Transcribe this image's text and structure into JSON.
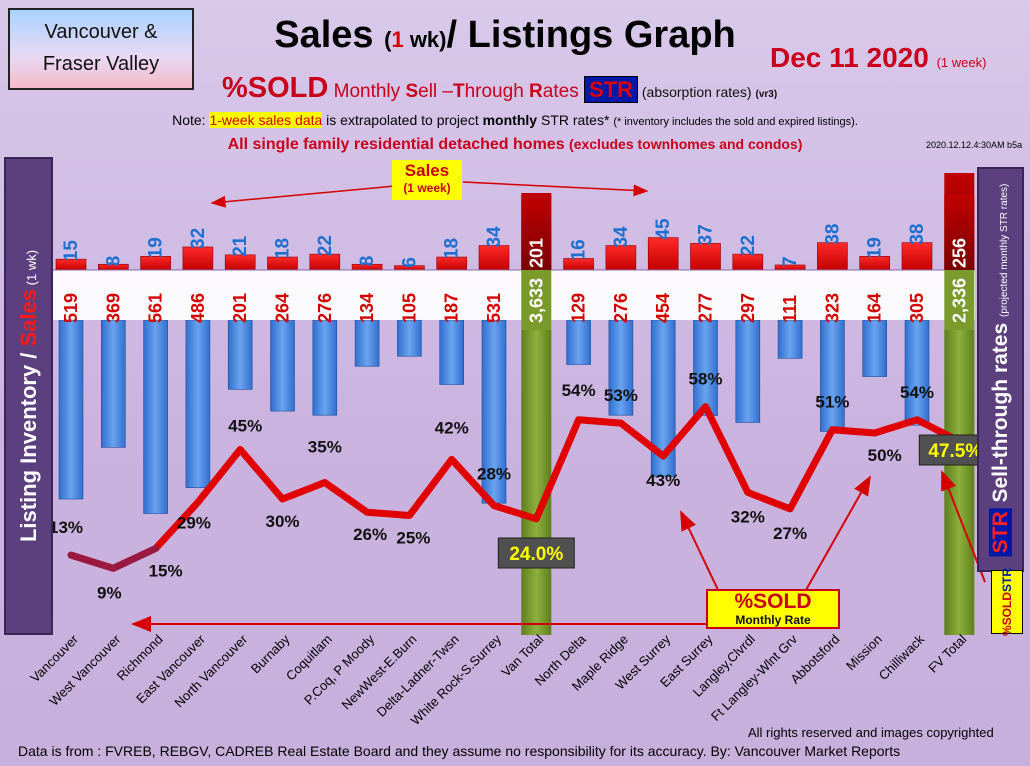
{
  "header": {
    "region_line1": "Vancouver &",
    "region_line2": "Fraser Valley",
    "title_a": "Sales ",
    "title_b": "(",
    "title_c": "1",
    "title_d": " wk)",
    "title_e": "/ Listings Graph",
    "date": "Dec 11  2020",
    "date_suffix": "(1 week)",
    "subtitle_a": "%SOLD",
    "subtitle_b": " Monthly ",
    "subtitle_c": "S",
    "subtitle_d": "ell –",
    "subtitle_e": "T",
    "subtitle_f": "hrough ",
    "subtitle_g": "R",
    "subtitle_h": "ates ",
    "subtitle_str": "STR",
    "subtitle_i": " (absorption rates) ",
    "subtitle_j": "(vr3)",
    "note_a": "Note: ",
    "note_hl": "1-week sales data",
    "note_b": " is extrapolated to project ",
    "note_c": "monthly",
    "note_d": " STR rates* ",
    "note_e": "(* inventory includes the sold and expired listings).",
    "stamp": "2020.12.12.4:30AM b5a",
    "note2_a": "All single family residential detached homes ",
    "note2_b": "(excludes townhomes and condos)"
  },
  "left_axis": {
    "a": "Listing Inventory ",
    "b": "/ ",
    "c": "Sales",
    "d": " (1 wk)"
  },
  "right_axis": {
    "str": "STR",
    "a": " Sell-through rates ",
    "b": "(projected monthly STR rates)"
  },
  "pct_box": {
    "a": "%SOLD",
    "str": "STR"
  },
  "sales_callout": {
    "a": "Sales",
    "b": "(1 week)"
  },
  "sold_box": {
    "a": "%SOLD",
    "b": "Monthly Rate"
  },
  "footer": {
    "copyright": "All rights reserved and  images copyrighted",
    "source": "Data is from : FVREB, REBGV, CADREB Real Estate Board and they assume no responsibility for its accuracy. By: Vancouver Market Reports"
  },
  "colors": {
    "sales": "#e60000",
    "inventory": "#4a86d8",
    "total": "#7a9a2c",
    "line": "#e00000"
  },
  "chart_data": {
    "type": "bar",
    "categories": [
      "Vancouver",
      "West Vancouver",
      "Richmond",
      "East Vancouver",
      "North Vancouver",
      "Burnaby",
      "Coquitlam",
      "P.Coq, P Moody",
      "NewWest-E.Burn",
      "Delta-Ladner-Twsn",
      "White Rock-S.Surrey",
      "Van Total",
      "North Delta",
      "Maple Ridge",
      "West Surrey",
      "East Surrey",
      "Langley,Clvrdl",
      "Ft Langley-Wlnt Grv",
      "Abbotsford",
      "Mission",
      "Chilliwack",
      "FV Total"
    ],
    "sales_labels": [
      "15",
      "8",
      "19",
      "32",
      "21",
      "18",
      "22",
      "8",
      "6",
      "18",
      "34",
      "201",
      "16",
      "34",
      "45",
      "37",
      "22",
      "7",
      "38",
      "19",
      "38",
      "256"
    ],
    "inventory_labels": [
      "519",
      "369",
      "561",
      "486",
      "201",
      "264",
      "276",
      "134",
      "105",
      "187",
      "531",
      "3,633",
      "129",
      "276",
      "454",
      "277",
      "297",
      "111",
      "323",
      "164",
      "305",
      "2,336"
    ],
    "series": [
      {
        "name": "Sales (1 week)",
        "values": [
          15,
          8,
          19,
          32,
          21,
          18,
          22,
          8,
          6,
          18,
          34,
          201,
          16,
          34,
          45,
          37,
          22,
          7,
          38,
          19,
          38,
          256
        ]
      },
      {
        "name": "Listing Inventory",
        "values": [
          519,
          369,
          561,
          486,
          201,
          264,
          276,
          134,
          105,
          187,
          531,
          3633,
          129,
          276,
          454,
          277,
          297,
          111,
          323,
          164,
          305,
          2336
        ]
      },
      {
        "name": "%SOLD Monthly Rate",
        "values": [
          13,
          9,
          15,
          29,
          45,
          30,
          35,
          26,
          25,
          42,
          28,
          24.0,
          54,
          53,
          43,
          58,
          32,
          27,
          51,
          50,
          54,
          47.5
        ]
      }
    ],
    "pct_labels": [
      "13%",
      "9%",
      "15%",
      "29%",
      "45%",
      "30%",
      "35%",
      "26%",
      "25%",
      "42%",
      "28%",
      "24.0%",
      "54%",
      "53%",
      "43%",
      "58%",
      "32%",
      "27%",
      "51%",
      "50%",
      "54%",
      "47.5%"
    ],
    "total_indices": [
      11,
      21
    ]
  }
}
